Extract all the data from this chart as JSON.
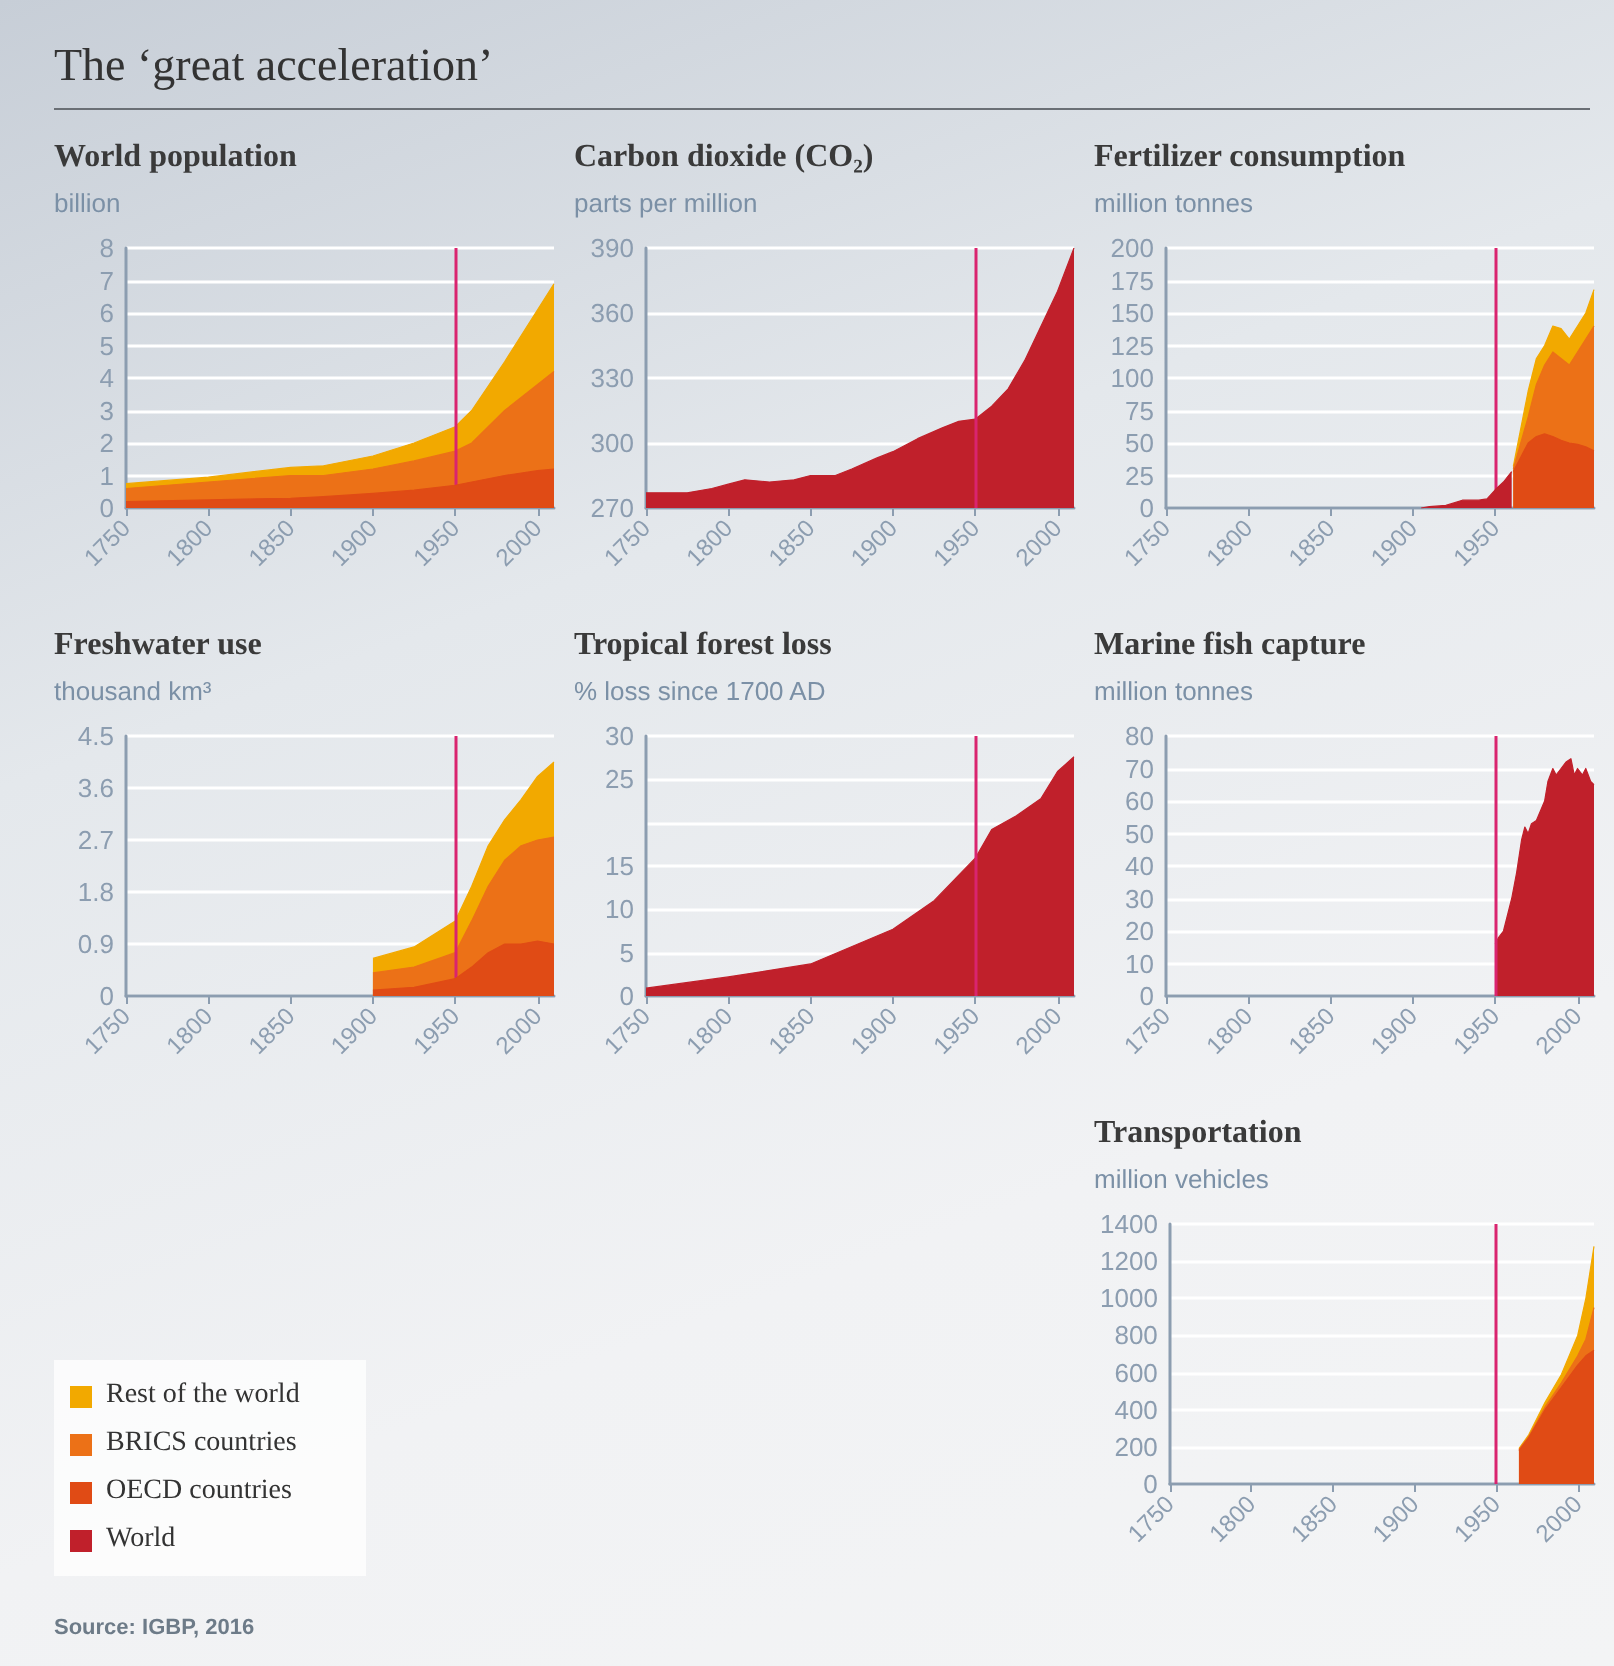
{
  "chart_data": [
    {
      "type": "area",
      "title": "World population",
      "subtitle": "billion",
      "annotations": [
        "The ‘great acceleration’",
        "Source: IGBP, 2016"
      ],
      "stacked": true,
      "legend": "bottom left",
      "grid": "y",
      "x": [
        1750,
        1800,
        1850,
        1870,
        1900,
        1925,
        1950,
        1960,
        1980,
        2000,
        2010
      ],
      "series": [
        {
          "name": "OECD countries",
          "color": "#e04b15",
          "values": [
            0.2,
            0.25,
            0.3,
            0.35,
            0.45,
            0.55,
            0.7,
            0.8,
            1.0,
            1.15,
            1.2
          ]
        },
        {
          "name": "BRICS countries",
          "color": "#ec7117",
          "values": [
            0.4,
            0.55,
            0.7,
            0.65,
            0.75,
            0.9,
            1.05,
            1.2,
            2.0,
            2.65,
            3.0
          ]
        },
        {
          "name": "Rest of the world",
          "color": "#f2a900",
          "values": [
            0.15,
            0.15,
            0.25,
            0.3,
            0.4,
            0.55,
            0.75,
            1.0,
            1.5,
            2.3,
            2.7
          ]
        }
      ],
      "xlim": [
        1750,
        2010
      ],
      "xticks": [
        1750,
        1800,
        1850,
        1900,
        1950,
        2000
      ],
      "ylim": [
        0,
        8
      ],
      "yticks": [
        0,
        1,
        2,
        3,
        4,
        5,
        6,
        7,
        8
      ],
      "ref_lines": [
        {
          "axis": "x",
          "value": 1950,
          "color": "#d9246f"
        }
      ]
    },
    {
      "type": "area",
      "title": "Carbon dioxide (CO₂)",
      "subtitle": "parts per million",
      "legend": "bottom left",
      "grid": "y",
      "x": [
        1750,
        1775,
        1790,
        1800,
        1810,
        1825,
        1840,
        1850,
        1865,
        1875,
        1890,
        1900,
        1915,
        1930,
        1940,
        1950,
        1960,
        1970,
        1980,
        1990,
        2000,
        2010
      ],
      "series": [
        {
          "name": "World",
          "color": "#c0202b",
          "values": [
            277,
            277,
            279,
            281,
            283,
            282,
            283,
            285,
            285,
            288,
            293,
            296,
            302,
            307,
            310,
            311,
            317,
            325,
            338,
            354,
            370,
            390
          ]
        }
      ],
      "xlim": [
        1750,
        2010
      ],
      "xticks": [
        1750,
        1800,
        1850,
        1900,
        1950,
        2000
      ],
      "ylim": [
        270,
        390
      ],
      "yticks": [
        270,
        300,
        330,
        360,
        390
      ],
      "ref_lines": [
        {
          "axis": "x",
          "value": 1950,
          "color": "#d9246f"
        }
      ]
    },
    {
      "type": "area",
      "title": "Fertilizer consumption",
      "subtitle": "million tonnes",
      "stacked": true,
      "legend": "bottom left",
      "grid": "y",
      "x": [
        1905,
        1910,
        1920,
        1930,
        1940,
        1945,
        1950,
        1955,
        1960,
        1961,
        1970,
        1975,
        1980,
        1985,
        1990,
        1995,
        2000,
        2005,
        2010
      ],
      "series": [
        {
          "name": "World",
          "color": "#c0202b",
          "values": [
            0,
            1,
            2,
            6,
            6,
            7,
            14,
            20,
            28,
            null,
            null,
            null,
            null,
            null,
            null,
            null,
            null,
            null,
            null
          ]
        },
        {
          "name": "OECD countries",
          "color": "#e04b15",
          "values": [
            null,
            null,
            null,
            null,
            null,
            null,
            null,
            null,
            null,
            28,
            50,
            55,
            57,
            55,
            52,
            50,
            49,
            47,
            44
          ]
        },
        {
          "name": "BRICS countries",
          "color": "#ec7117",
          "values": [
            null,
            null,
            null,
            null,
            null,
            null,
            null,
            null,
            null,
            2,
            20,
            40,
            53,
            65,
            63,
            60,
            71,
            83,
            96
          ]
        },
        {
          "name": "Rest of the world",
          "color": "#f2a900",
          "values": [
            null,
            null,
            null,
            null,
            null,
            null,
            null,
            null,
            null,
            2,
            20,
            20,
            15,
            20,
            23,
            20,
            20,
            20,
            28
          ]
        }
      ],
      "xlim": [
        1750,
        2010
      ],
      "xticks": [
        1750,
        1800,
        1850,
        1900,
        1950
      ],
      "ylim": [
        0,
        200
      ],
      "yticks": [
        0,
        25,
        50,
        75,
        100,
        125,
        150,
        175,
        200
      ],
      "ref_lines": [
        {
          "axis": "x",
          "value": 1950,
          "color": "#d9246f"
        }
      ]
    },
    {
      "type": "area",
      "title": "Freshwater use",
      "subtitle": "thousand km³",
      "stacked": true,
      "legend": "bottom left",
      "grid": "y",
      "x": [
        1900,
        1925,
        1950,
        1960,
        1970,
        1980,
        1990,
        2000,
        2010
      ],
      "series": [
        {
          "name": "OECD countries",
          "color": "#e04b15",
          "values": [
            0.1,
            0.15,
            0.3,
            0.5,
            0.75,
            0.9,
            0.9,
            0.95,
            0.9
          ]
        },
        {
          "name": "BRICS countries",
          "color": "#ec7117",
          "values": [
            0.3,
            0.35,
            0.45,
            0.8,
            1.15,
            1.45,
            1.7,
            1.75,
            1.85
          ]
        },
        {
          "name": "Rest of the world",
          "color": "#f2a900",
          "values": [
            0.25,
            0.35,
            0.55,
            0.6,
            0.7,
            0.7,
            0.8,
            1.1,
            1.3
          ]
        }
      ],
      "xlim": [
        1750,
        2010
      ],
      "xticks": [
        1750,
        1800,
        1850,
        1900,
        1950,
        2000
      ],
      "ylim": [
        0,
        4.5
      ],
      "yticks": [
        0,
        0.9,
        1.8,
        2.7,
        3.6,
        4.5
      ],
      "ref_lines": [
        {
          "axis": "x",
          "value": 1950,
          "color": "#d9246f"
        }
      ]
    },
    {
      "type": "area",
      "title": "Tropical forest loss",
      "subtitle": "% loss since 1700 AD",
      "legend": "bottom left",
      "grid": "y",
      "x": [
        1750,
        1800,
        1850,
        1900,
        1925,
        1950,
        1960,
        1975,
        1990,
        2000,
        2010
      ],
      "series": [
        {
          "name": "World",
          "color": "#c0202b",
          "values": [
            0.9,
            2.2,
            3.7,
            7.7,
            11,
            15.9,
            19.2,
            20.8,
            22.8,
            25.9,
            27.6
          ]
        }
      ],
      "xlim": [
        1750,
        2010
      ],
      "xticks": [
        1750,
        1800,
        1850,
        1900,
        1950,
        2000
      ],
      "ylim": [
        0,
        30
      ],
      "yticks": [
        0,
        5,
        10,
        15,
        {
          "value": 20,
          "label": null
        },
        25,
        30
      ],
      "ref_lines": [
        {
          "axis": "x",
          "value": 1950,
          "color": "#d9246f"
        }
      ]
    },
    {
      "type": "area",
      "title": "Marine fish capture",
      "subtitle": "million tonnes",
      "legend": "bottom left",
      "grid": "y",
      "x": [
        1950,
        1952,
        1955,
        1958,
        1960,
        1963,
        1966,
        1968,
        1970,
        1972,
        1975,
        1980,
        1982,
        1985,
        1987,
        1990,
        1993,
        1996,
        1998,
        2000,
        2003,
        2005,
        2008,
        2010
      ],
      "series": [
        {
          "name": "World",
          "color": "#c0202b",
          "values": [
            16,
            18,
            20,
            26,
            30,
            38,
            48,
            52,
            50,
            53,
            54,
            60,
            66,
            70,
            68,
            70,
            72,
            73,
            68,
            70,
            68,
            70,
            66,
            65
          ]
        }
      ],
      "xlim": [
        1750,
        2010
      ],
      "xticks": [
        1750,
        1800,
        1850,
        1900,
        1950,
        2000
      ],
      "ylim": [
        0,
        80
      ],
      "yticks": [
        0,
        10,
        20,
        30,
        40,
        50,
        60,
        70,
        80
      ],
      "ref_lines": [
        {
          "axis": "x",
          "value": 1950,
          "color": "#d9246f"
        }
      ]
    },
    {
      "type": "area",
      "title": "Transportation",
      "subtitle": "million vehicles",
      "stacked": true,
      "legend": "bottom left",
      "grid": "y",
      "x": [
        1964,
        1970,
        1980,
        1990,
        2000,
        2005,
        2010
      ],
      "series": [
        {
          "name": "OECD countries",
          "color": "#e04b15",
          "values": [
            180,
            250,
            400,
            520,
            640,
            690,
            720
          ]
        },
        {
          "name": "BRICS countries",
          "color": "#ec7117",
          "values": [
            5,
            5,
            15,
            25,
            50,
            90,
            230
          ]
        },
        {
          "name": "Rest of the world",
          "color": "#f2a900",
          "values": [
            5,
            10,
            25,
            45,
            110,
            220,
            330
          ]
        }
      ],
      "xlim": [
        1750,
        2010
      ],
      "xticks": [
        1750,
        1800,
        1850,
        1900,
        1950,
        2000
      ],
      "ylim": [
        0,
        1400
      ],
      "yticks": [
        0,
        200,
        400,
        600,
        800,
        1000,
        1200,
        1400
      ],
      "ref_lines": [
        {
          "axis": "x",
          "value": 1950,
          "color": "#d9246f"
        }
      ]
    }
  ]
}
